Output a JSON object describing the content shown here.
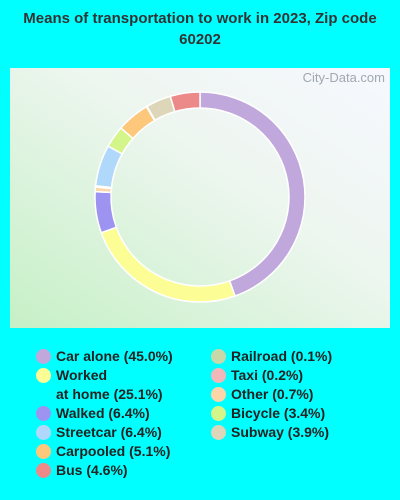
{
  "chart_data": {
    "type": "pie",
    "title": "Means of transportation to work in 2023, Zip code 60202",
    "watermark": "City-Data.com",
    "categories": [
      "Car alone (45.0%)",
      "Worked\nat home (25.1%)",
      "Walked (6.4%)",
      "Streetcar (6.4%)",
      "Carpooled (5.1%)",
      "Bus (4.6%)",
      "Railroad (0.1%)",
      "Taxi (0.2%)",
      "Other (0.7%)",
      "Bicycle (3.4%)",
      "Subway (3.9%)"
    ],
    "values": [
      45.0,
      25.1,
      6.4,
      6.4,
      5.1,
      4.6,
      0.1,
      0.2,
      0.7,
      3.4,
      3.9
    ],
    "colors": [
      "#c0a8dc",
      "#fdfd96",
      "#9d93f0",
      "#b0d8fa",
      "#fdc77c",
      "#ec8a8a",
      "#c8d8a8",
      "#f0b8b8",
      "#fcd5a8",
      "#d4f58a",
      "#ddd6b8"
    ]
  }
}
